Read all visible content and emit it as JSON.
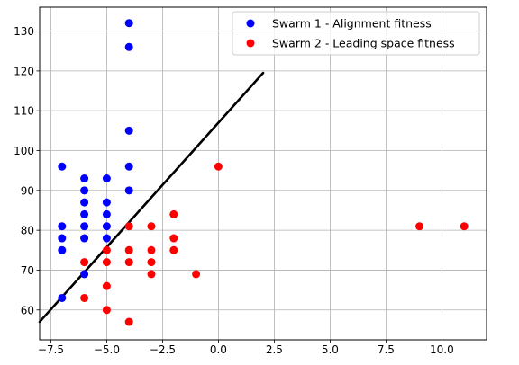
{
  "chart_data": {
    "type": "scatter",
    "title": "",
    "xlabel": "",
    "ylabel": "",
    "xlim": [
      -8.0,
      12.0
    ],
    "ylim": [
      52.5,
      136.0
    ],
    "xticks": [
      -7.5,
      -5.0,
      -2.5,
      0.0,
      2.5,
      5.0,
      7.5,
      10.0
    ],
    "xtick_labels": [
      "−7.5",
      "−5.0",
      "−2.5",
      "0.0",
      "2.5",
      "5.0",
      "7.5",
      "10.0"
    ],
    "yticks": [
      60,
      70,
      80,
      90,
      100,
      110,
      120,
      130
    ],
    "ytick_labels": [
      "60",
      "70",
      "80",
      "90",
      "100",
      "110",
      "120",
      "130"
    ],
    "grid": true,
    "legend_position": "top-right",
    "series": [
      {
        "name": "Swarm 1 - Alignment fitness",
        "color": "#0000ff",
        "points": [
          [
            -7,
            96
          ],
          [
            -7,
            81
          ],
          [
            -7,
            78
          ],
          [
            -7,
            75
          ],
          [
            -7,
            63
          ],
          [
            -6,
            93
          ],
          [
            -6,
            90
          ],
          [
            -6,
            87
          ],
          [
            -6,
            84
          ],
          [
            -6,
            81
          ],
          [
            -6,
            78
          ],
          [
            -6,
            69
          ],
          [
            -5,
            93
          ],
          [
            -5,
            87
          ],
          [
            -5,
            84
          ],
          [
            -5,
            81
          ],
          [
            -5,
            78
          ],
          [
            -4,
            132
          ],
          [
            -4,
            126
          ],
          [
            -4,
            105
          ],
          [
            -4,
            96
          ],
          [
            -4,
            90
          ]
        ]
      },
      {
        "name": "Swarm 2 - Leading space fitness",
        "color": "#ff0000",
        "points": [
          [
            -6,
            72
          ],
          [
            -6,
            63
          ],
          [
            -5,
            75
          ],
          [
            -5,
            72
          ],
          [
            -5,
            66
          ],
          [
            -5,
            60
          ],
          [
            -4,
            81
          ],
          [
            -4,
            75
          ],
          [
            -4,
            72
          ],
          [
            -4,
            57
          ],
          [
            -3,
            81
          ],
          [
            -3,
            75
          ],
          [
            -3,
            72
          ],
          [
            -3,
            69
          ],
          [
            -2,
            84
          ],
          [
            -2,
            78
          ],
          [
            -2,
            75
          ],
          [
            -1,
            69
          ],
          [
            0,
            96
          ],
          [
            9,
            81
          ],
          [
            11,
            81
          ]
        ]
      }
    ],
    "line": {
      "color": "#000000",
      "x": [
        -8.0,
        2.0
      ],
      "y": [
        57.0,
        119.5
      ]
    }
  }
}
